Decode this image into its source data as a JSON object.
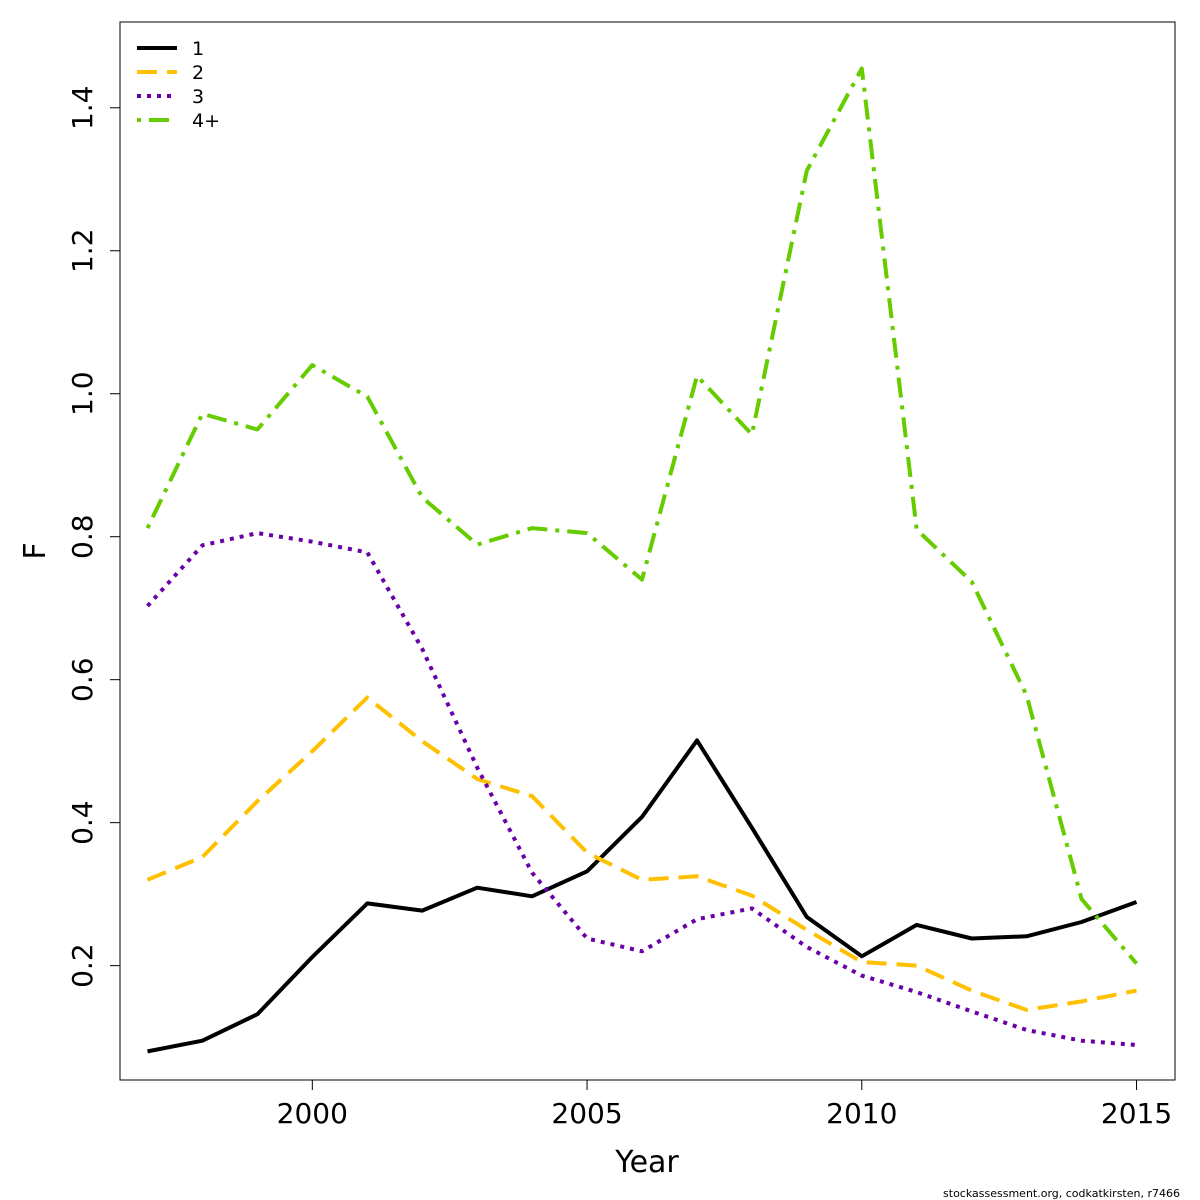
{
  "chart_data": {
    "type": "line",
    "xlabel": "Year",
    "ylabel": "F",
    "xlim": [
      1996.5,
      2015.7
    ],
    "ylim": [
      0.04,
      1.52
    ],
    "x_ticks": [
      "2000",
      "2005",
      "2010",
      "2015"
    ],
    "y_ticks": [
      "0.2",
      "0.4",
      "0.6",
      "0.8",
      "1.0",
      "1.2",
      "1.4"
    ],
    "x": [
      1997,
      1998,
      1999,
      2000,
      2001,
      2002,
      2003,
      2004,
      2005,
      2006,
      2007,
      2008,
      2009,
      2010,
      2011,
      2012,
      2013,
      2014,
      2015
    ],
    "legend_position": "top-left",
    "grid": false,
    "series": [
      {
        "name": "1",
        "color": "#000000",
        "dash": "solid",
        "values": [
          0.08,
          0.095,
          0.132,
          0.212,
          0.287,
          0.277,
          0.309,
          0.297,
          0.332,
          0.408,
          0.515,
          0.393,
          0.268,
          0.213,
          0.257,
          0.238,
          0.241,
          0.261,
          0.289
        ]
      },
      {
        "name": "2",
        "color": "#ffc000",
        "dash": "dashed",
        "values": [
          0.32,
          0.352,
          0.43,
          0.5,
          0.575,
          0.514,
          0.461,
          0.437,
          0.358,
          0.32,
          0.325,
          0.298,
          0.25,
          0.205,
          0.2,
          0.165,
          0.138,
          0.15,
          0.165
        ]
      },
      {
        "name": "3",
        "color": "#6a00a8",
        "dash": "dotted",
        "values": [
          0.703,
          0.788,
          0.805,
          0.793,
          0.778,
          0.643,
          0.477,
          0.33,
          0.238,
          0.22,
          0.265,
          0.28,
          0.226,
          0.186,
          0.163,
          0.136,
          0.11,
          0.095,
          0.089
        ]
      },
      {
        "name": "4+",
        "color": "#66cc00",
        "dash": "dotdash",
        "values": [
          0.812,
          0.972,
          0.95,
          1.04,
          0.996,
          0.855,
          0.789,
          0.812,
          0.805,
          0.74,
          1.025,
          0.943,
          1.312,
          1.455,
          0.81,
          0.737,
          0.578,
          0.293,
          0.203
        ]
      }
    ]
  },
  "credit": "stockassessment.org, codkatkirsten, r7466"
}
